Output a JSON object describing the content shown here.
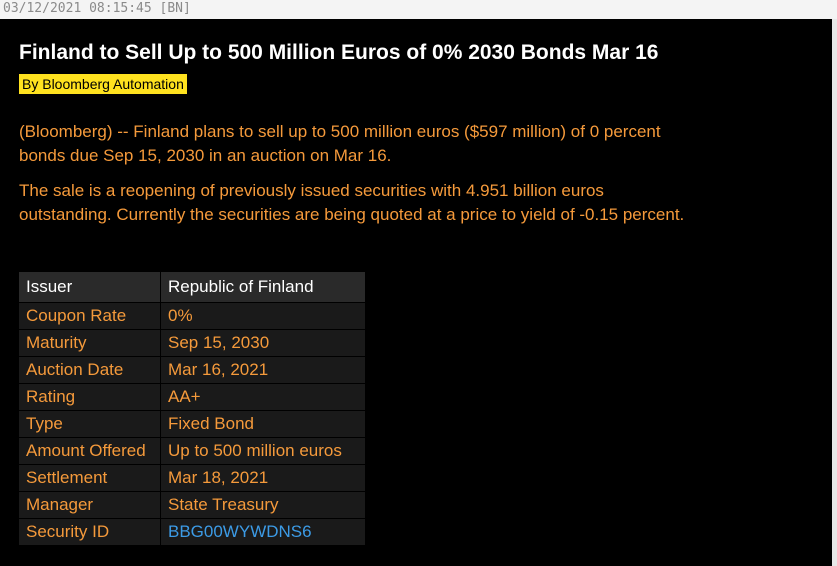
{
  "header": {
    "timestamp": "03/12/2021 08:15:45 [BN]"
  },
  "article": {
    "title": "Finland to Sell Up to 500 Million Euros of 0% 2030 Bonds Mar 16",
    "byline": "By Bloomberg Automation",
    "paragraphs": [
      "(Bloomberg) -- Finland plans to sell up to 500 million euros ($597 million) of 0 percent bonds due Sep 15, 2030 in an auction on Mar 16.",
      "The sale is a reopening of previously issued securities with 4.951 billion euros outstanding. Currently the securities are being quoted at a price to yield of -0.15 percent."
    ]
  },
  "table": {
    "header": [
      "Issuer",
      "Republic of Finland"
    ],
    "rows": [
      [
        "Coupon Rate",
        "0%"
      ],
      [
        "Maturity",
        "Sep 15, 2030"
      ],
      [
        "Auction Date",
        "Mar 16, 2021"
      ],
      [
        "Rating",
        "AA+"
      ],
      [
        "Type",
        "Fixed Bond"
      ],
      [
        "Amount Offered",
        "Up to 500 million euros"
      ],
      [
        "Settlement",
        "Mar 18, 2021"
      ],
      [
        "Manager",
        "State Treasury"
      ],
      [
        "Security ID",
        "BBG00WYWDNS6"
      ]
    ]
  }
}
